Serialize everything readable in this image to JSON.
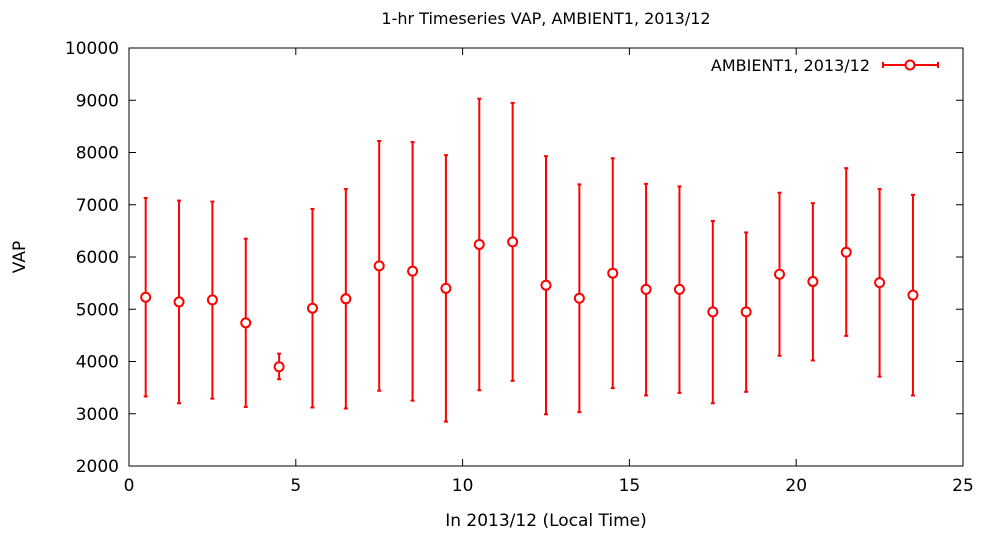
{
  "chart_data": {
    "type": "scatter",
    "title": "1-hr Timeseries VAP, AMBIENT1, 2013/12",
    "xlabel": "In 2013/12 (Local Time)",
    "ylabel": "VAP",
    "xlim": [
      0,
      25
    ],
    "ylim": [
      2000,
      10000
    ],
    "x_ticks": [
      "0",
      "5",
      "10",
      "15",
      "20",
      "25"
    ],
    "y_ticks": [
      "2000",
      "3000",
      "4000",
      "5000",
      "6000",
      "7000",
      "8000",
      "9000",
      "10000"
    ],
    "legend_position": "top-right",
    "grid": false,
    "color": "#ff0000",
    "series": [
      {
        "name": "AMBIENT1, 2013/12",
        "points": [
          {
            "x": 0.5,
            "y": 5230,
            "low": 3330,
            "high": 7130
          },
          {
            "x": 1.5,
            "y": 5140,
            "low": 3200,
            "high": 7080
          },
          {
            "x": 2.5,
            "y": 5180,
            "low": 3290,
            "high": 7060
          },
          {
            "x": 3.5,
            "y": 4740,
            "low": 3130,
            "high": 6350
          },
          {
            "x": 4.5,
            "y": 3900,
            "low": 3660,
            "high": 4150
          },
          {
            "x": 5.5,
            "y": 5020,
            "low": 3120,
            "high": 6920
          },
          {
            "x": 6.5,
            "y": 5200,
            "low": 3100,
            "high": 7300
          },
          {
            "x": 7.5,
            "y": 5830,
            "low": 3440,
            "high": 8220
          },
          {
            "x": 8.5,
            "y": 5730,
            "low": 3250,
            "high": 8200
          },
          {
            "x": 9.5,
            "y": 5400,
            "low": 2850,
            "high": 7950
          },
          {
            "x": 10.5,
            "y": 6240,
            "low": 3450,
            "high": 9030
          },
          {
            "x": 11.5,
            "y": 6290,
            "low": 3630,
            "high": 8950
          },
          {
            "x": 12.5,
            "y": 5460,
            "low": 2990,
            "high": 7930
          },
          {
            "x": 13.5,
            "y": 5210,
            "low": 3030,
            "high": 7390
          },
          {
            "x": 14.5,
            "y": 5690,
            "low": 3490,
            "high": 7890
          },
          {
            "x": 15.5,
            "y": 5380,
            "low": 3350,
            "high": 7400
          },
          {
            "x": 16.5,
            "y": 5380,
            "low": 3400,
            "high": 7350
          },
          {
            "x": 17.5,
            "y": 4950,
            "low": 3200,
            "high": 6690
          },
          {
            "x": 18.5,
            "y": 4950,
            "low": 3420,
            "high": 6470
          },
          {
            "x": 19.5,
            "y": 5670,
            "low": 4110,
            "high": 7230
          },
          {
            "x": 20.5,
            "y": 5530,
            "low": 4020,
            "high": 7030
          },
          {
            "x": 21.5,
            "y": 6090,
            "low": 4490,
            "high": 7700
          },
          {
            "x": 22.5,
            "y": 5510,
            "low": 3710,
            "high": 7300
          },
          {
            "x": 23.5,
            "y": 5270,
            "low": 3350,
            "high": 7190
          }
        ]
      }
    ]
  }
}
